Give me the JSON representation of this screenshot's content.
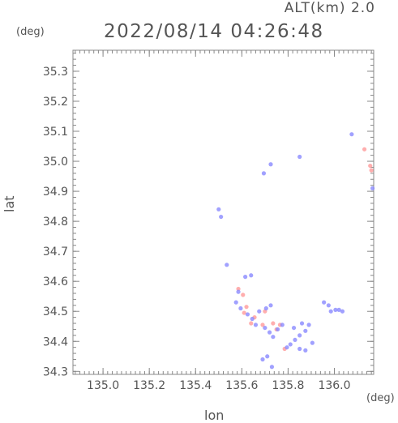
{
  "header": {
    "altitude": "ALT(km) 2.0",
    "timestamp": "2022/08/14 04:26:48"
  },
  "colors": {
    "axis": "#888888",
    "positive": "#ff9a9a",
    "negative": "#8a8aff"
  },
  "chart_data": {
    "type": "scatter",
    "title": "",
    "xlabel": "lon",
    "ylabel": "lat",
    "x_unit": "(deg)",
    "y_unit": "(deg)",
    "xlim": [
      134.87,
      136.17
    ],
    "ylim": [
      34.29,
      35.37
    ],
    "xticks": [
      "135.0",
      "135.2",
      "135.4",
      "135.6",
      "135.8",
      "136.0"
    ],
    "yticks": [
      "34.3",
      "34.4",
      "34.5",
      "34.6",
      "34.7",
      "34.8",
      "34.9",
      "35.0",
      "35.1",
      "35.2",
      "35.3"
    ],
    "grid": false,
    "series": [
      {
        "points": [
          [
            135.585,
            34.575
          ],
          [
            135.605,
            34.555
          ],
          [
            135.61,
            34.495
          ],
          [
            135.655,
            34.48
          ],
          [
            135.69,
            34.455
          ],
          [
            135.735,
            34.46
          ],
          [
            135.765,
            34.455
          ],
          [
            135.785,
            34.375
          ],
          [
            136.13,
            35.04
          ],
          [
            136.155,
            34.985
          ],
          [
            136.16,
            34.97
          ],
          [
            135.62,
            34.515
          ],
          [
            135.7,
            34.5
          ],
          [
            135.75,
            34.44
          ],
          [
            135.64,
            34.46
          ]
        ]
      },
      {
        "points": [
          [
            136.075,
            35.09
          ],
          [
            135.725,
            34.99
          ],
          [
            135.695,
            34.96
          ],
          [
            135.85,
            35.015
          ],
          [
            135.5,
            34.84
          ],
          [
            135.51,
            34.815
          ],
          [
            135.535,
            34.655
          ],
          [
            135.615,
            34.615
          ],
          [
            135.64,
            34.62
          ],
          [
            135.585,
            34.565
          ],
          [
            135.575,
            34.53
          ],
          [
            135.595,
            34.51
          ],
          [
            135.625,
            34.49
          ],
          [
            135.645,
            34.475
          ],
          [
            135.66,
            34.455
          ],
          [
            135.675,
            34.5
          ],
          [
            135.705,
            34.51
          ],
          [
            135.725,
            34.52
          ],
          [
            135.7,
            34.445
          ],
          [
            135.72,
            34.43
          ],
          [
            135.735,
            34.415
          ],
          [
            135.755,
            34.44
          ],
          [
            135.775,
            34.455
          ],
          [
            135.795,
            34.38
          ],
          [
            135.81,
            34.39
          ],
          [
            135.83,
            34.405
          ],
          [
            135.85,
            34.42
          ],
          [
            135.875,
            34.435
          ],
          [
            135.86,
            34.46
          ],
          [
            135.89,
            34.455
          ],
          [
            135.905,
            34.395
          ],
          [
            135.85,
            34.375
          ],
          [
            135.875,
            34.37
          ],
          [
            135.71,
            34.35
          ],
          [
            135.69,
            34.34
          ],
          [
            135.73,
            34.315
          ],
          [
            135.955,
            34.53
          ],
          [
            135.975,
            34.52
          ],
          [
            135.985,
            34.5
          ],
          [
            136.005,
            34.505
          ],
          [
            136.02,
            34.505
          ],
          [
            136.035,
            34.5
          ],
          [
            136.165,
            34.91
          ],
          [
            135.825,
            34.445
          ]
        ]
      }
    ]
  }
}
